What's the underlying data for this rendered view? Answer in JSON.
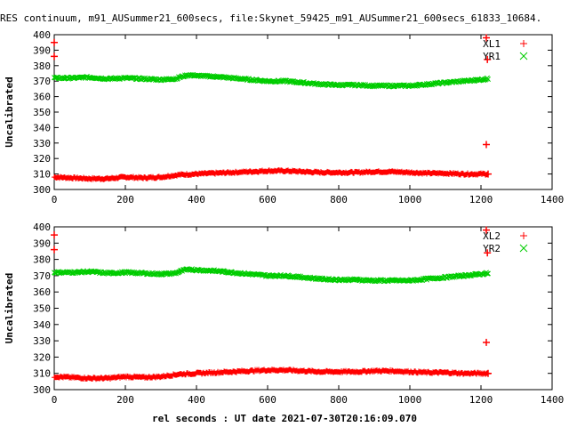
{
  "title": "RES continuum, m91_AUSummer21_600secs, file:Skynet_59425_m91_AUSummer21_600secs_61833_10684.",
  "xlabel": "rel seconds : UT date 2021-07-30T20:16:09.070",
  "colors": {
    "red": "#ff0000",
    "green": "#00cc00",
    "axis": "#000000"
  },
  "chart_data": [
    {
      "type": "scatter",
      "ylabel": "Uncalibrated",
      "xlim": [
        0,
        1400
      ],
      "ylim": [
        300,
        400
      ],
      "xticks": [
        "0",
        "200",
        "400",
        "600",
        "800",
        "1000",
        "1200",
        "1400"
      ],
      "yticks": [
        "300",
        "310",
        "320",
        "330",
        "340",
        "350",
        "360",
        "370",
        "380",
        "390",
        "400"
      ],
      "legend_position": "top-right",
      "series": [
        {
          "name": "XL1",
          "marker": "plus",
          "color": "#ff0000",
          "x": [
            0,
            50,
            100,
            150,
            200,
            250,
            300,
            350,
            400,
            450,
            500,
            550,
            600,
            650,
            700,
            750,
            800,
            850,
            900,
            950,
            1000,
            1050,
            1100,
            1150,
            1200,
            1220
          ],
          "y": [
            308,
            307.5,
            307,
            307,
            308,
            307.5,
            308,
            309.5,
            310,
            310.5,
            311,
            311.5,
            312,
            312,
            311.5,
            311,
            311,
            311,
            311.5,
            311.5,
            311,
            310.5,
            310.5,
            310,
            310,
            310
          ],
          "outliers": [
            [
              0,
              395
            ],
            [
              0,
              386
            ],
            [
              1215,
              329
            ],
            [
              1218,
              384
            ],
            [
              1215,
              398
            ]
          ]
        },
        {
          "name": "YR1",
          "marker": "cross",
          "color": "#00cc00",
          "x": [
            0,
            50,
            100,
            150,
            200,
            250,
            300,
            340,
            360,
            380,
            400,
            450,
            500,
            550,
            600,
            650,
            700,
            750,
            800,
            850,
            900,
            950,
            1000,
            1050,
            1100,
            1150,
            1200,
            1220
          ],
          "y": [
            372,
            372,
            372.5,
            371.5,
            372,
            371.5,
            371,
            371.5,
            373,
            374,
            373.5,
            373,
            372,
            371,
            370,
            370,
            369,
            368,
            367.5,
            367.5,
            367,
            367,
            367,
            368,
            369,
            370,
            371,
            371.5
          ]
        }
      ]
    },
    {
      "type": "scatter",
      "ylabel": "Uncalibrated",
      "xlim": [
        0,
        1400
      ],
      "ylim": [
        300,
        400
      ],
      "xticks": [
        "0",
        "200",
        "400",
        "600",
        "800",
        "1000",
        "1200",
        "1400"
      ],
      "yticks": [
        "300",
        "310",
        "320",
        "330",
        "340",
        "350",
        "360",
        "370",
        "380",
        "390",
        "400"
      ],
      "legend_position": "top-right",
      "series": [
        {
          "name": "XL2",
          "marker": "plus",
          "color": "#ff0000",
          "x": [
            0,
            50,
            100,
            150,
            200,
            250,
            300,
            350,
            400,
            450,
            500,
            550,
            600,
            650,
            700,
            750,
            800,
            850,
            900,
            950,
            1000,
            1050,
            1100,
            1150,
            1200,
            1220
          ],
          "y": [
            308,
            307.5,
            307,
            307,
            308,
            307.5,
            308,
            309.5,
            310,
            310.5,
            311,
            311.5,
            312,
            312,
            311.5,
            311,
            311,
            311,
            311.5,
            311.5,
            311,
            310.5,
            310.5,
            310,
            310,
            310
          ],
          "outliers": [
            [
              0,
              395
            ],
            [
              0,
              386
            ],
            [
              1215,
              329
            ],
            [
              1218,
              384
            ],
            [
              1215,
              398
            ]
          ]
        },
        {
          "name": "YR2",
          "marker": "cross",
          "color": "#00cc00",
          "x": [
            0,
            50,
            100,
            150,
            200,
            250,
            300,
            340,
            360,
            380,
            400,
            450,
            500,
            550,
            600,
            650,
            700,
            750,
            800,
            850,
            900,
            950,
            1000,
            1050,
            1100,
            1150,
            1200,
            1220
          ],
          "y": [
            372,
            372,
            372.5,
            371.5,
            372,
            371.5,
            371,
            371.5,
            373,
            374,
            373.5,
            373,
            372,
            371,
            370,
            370,
            369,
            368,
            367.5,
            367.5,
            367,
            367,
            367,
            368,
            369,
            370,
            371,
            371.5
          ]
        }
      ]
    }
  ]
}
